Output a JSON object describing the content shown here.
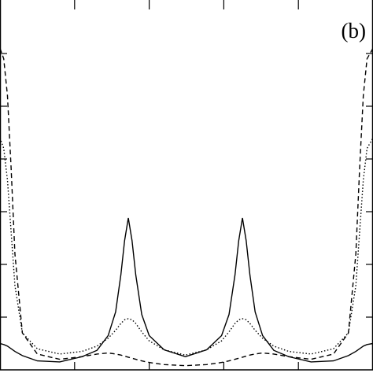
{
  "chart_data": {
    "type": "line",
    "annotation": "(b)",
    "x": [
      0,
      0.05,
      0.1,
      0.15,
      0.2,
      0.3,
      0.5,
      0.8,
      1.1,
      1.3,
      1.45,
      1.55,
      1.62,
      1.67,
      1.72,
      1.77,
      1.82,
      1.9,
      2.0,
      2.2,
      2.485,
      2.77,
      2.97,
      3.07,
      3.15,
      3.2,
      3.25,
      3.3,
      3.35,
      3.42,
      3.52,
      3.67,
      3.87,
      4.17,
      4.47,
      4.67,
      4.77,
      4.82,
      4.87,
      4.92,
      5.0
    ],
    "series": [
      {
        "color": "#000000",
        "style": "solid",
        "values": [
          0.5,
          0.48,
          0.45,
          0.4,
          0.35,
          0.27,
          0.17,
          0.15,
          0.25,
          0.37,
          0.65,
          1.1,
          1.8,
          2.45,
          2.88,
          2.45,
          1.8,
          1.05,
          0.65,
          0.38,
          0.25,
          0.38,
          0.65,
          1.05,
          1.8,
          2.45,
          2.88,
          2.45,
          1.8,
          1.1,
          0.65,
          0.37,
          0.25,
          0.15,
          0.17,
          0.27,
          0.35,
          0.4,
          0.45,
          0.48,
          0.5
        ]
      },
      {
        "color": "#000000",
        "style": "dashed",
        "values": [
          6.1,
          5.9,
          5.2,
          3.8,
          2.2,
          0.7,
          0.3,
          0.2,
          0.25,
          0.3,
          0.32,
          0.3,
          0.28,
          0.26,
          0.24,
          0.22,
          0.2,
          0.17,
          0.14,
          0.1,
          0.08,
          0.1,
          0.14,
          0.17,
          0.2,
          0.22,
          0.24,
          0.26,
          0.28,
          0.3,
          0.32,
          0.3,
          0.25,
          0.2,
          0.3,
          0.7,
          2.2,
          3.8,
          5.2,
          5.9,
          6.1
        ]
      },
      {
        "color": "#000000",
        "style": "dotted",
        "values": [
          4.4,
          4.2,
          3.6,
          2.6,
          1.6,
          0.7,
          0.4,
          0.3,
          0.35,
          0.45,
          0.6,
          0.75,
          0.88,
          0.95,
          0.97,
          0.95,
          0.88,
          0.72,
          0.55,
          0.38,
          0.28,
          0.38,
          0.55,
          0.72,
          0.88,
          0.95,
          0.97,
          0.95,
          0.88,
          0.75,
          0.6,
          0.45,
          0.35,
          0.3,
          0.4,
          0.7,
          1.6,
          2.6,
          3.6,
          4.2,
          4.4
        ]
      }
    ],
    "xlim": [
      0,
      5
    ],
    "xticks": [
      1,
      2,
      3,
      4
    ],
    "ylim": [
      0,
      7
    ],
    "yticks": [
      1,
      2,
      3,
      4,
      5,
      6
    ]
  }
}
